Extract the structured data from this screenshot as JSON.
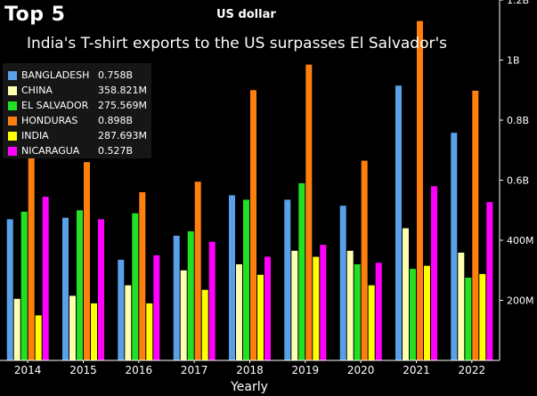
{
  "header": {
    "top_label": "Top 5",
    "unit_label": "US dollar",
    "subtitle": "India's T-shirt exports to the US surpasses El Salvador's"
  },
  "legend": [
    {
      "name": "BANGLADESH",
      "value": "0.758B",
      "color": "#5aa0e8"
    },
    {
      "name": "CHINA",
      "value": "358.821M",
      "color": "#ffffb0"
    },
    {
      "name": "EL SALVADOR",
      "value": "275.569M",
      "color": "#22e022"
    },
    {
      "name": "HONDURAS",
      "value": "0.898B",
      "color": "#ff7f0e"
    },
    {
      "name": "INDIA",
      "value": "287.693M",
      "color": "#ffff00"
    },
    {
      "name": "NICARAGUA",
      "value": "0.527B",
      "color": "#ff00ff"
    }
  ],
  "chart_data": {
    "type": "bar",
    "categories": [
      "2014",
      "2015",
      "2016",
      "2017",
      "2018",
      "2019",
      "2020",
      "2021",
      "2022"
    ],
    "xlabel": "Yearly",
    "y_ticks": [
      {
        "value": 200,
        "label": "200M"
      },
      {
        "value": 400,
        "label": "400M"
      },
      {
        "value": 600,
        "label": "0.6B"
      },
      {
        "value": 800,
        "label": "0.8B"
      },
      {
        "value": 1000,
        "label": "1B"
      },
      {
        "value": 1200,
        "label": "1.2B"
      }
    ],
    "ylim": [
      0,
      1200
    ],
    "y_unit": "millions of US dollars",
    "series": [
      {
        "name": "BANGLADESH",
        "color": "#5aa0e8",
        "values": [
          470,
          475,
          335,
          415,
          550,
          535,
          515,
          915,
          758
        ]
      },
      {
        "name": "CHINA",
        "color": "#ffffb0",
        "values": [
          205,
          215,
          250,
          300,
          320,
          365,
          365,
          440,
          358.821
        ]
      },
      {
        "name": "EL SALVADOR",
        "color": "#22e022",
        "values": [
          495,
          500,
          490,
          430,
          535,
          590,
          320,
          305,
          275.569
        ]
      },
      {
        "name": "HONDURAS",
        "color": "#ff7f0e",
        "values": [
          730,
          660,
          560,
          595,
          900,
          985,
          665,
          1130,
          898
        ]
      },
      {
        "name": "INDIA",
        "color": "#ffff00",
        "values": [
          150,
          190,
          190,
          235,
          285,
          345,
          250,
          315,
          287.693
        ]
      },
      {
        "name": "NICARAGUA",
        "color": "#ff00ff",
        "values": [
          545,
          470,
          350,
          395,
          345,
          385,
          325,
          580,
          527
        ]
      }
    ]
  }
}
